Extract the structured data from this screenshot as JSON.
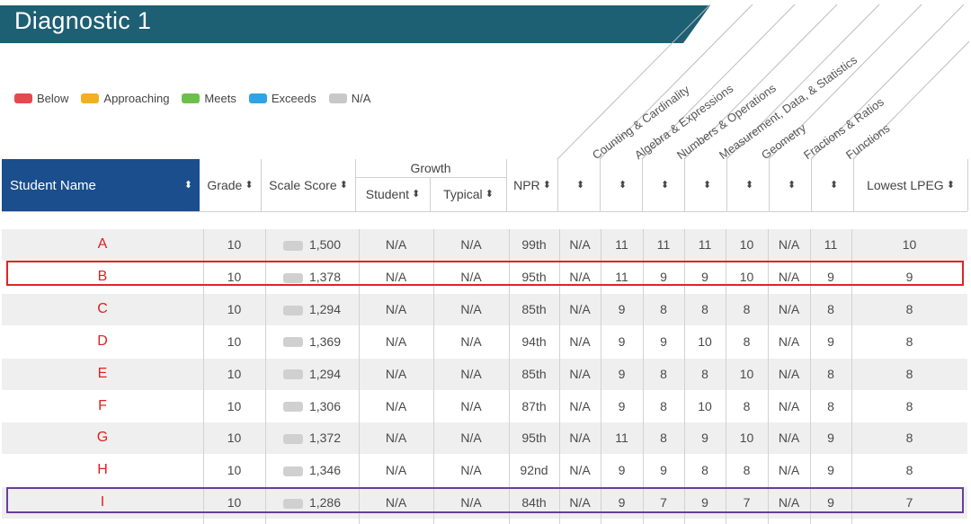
{
  "header": {
    "title": "Diagnostic 1"
  },
  "legend": [
    {
      "label": "Below",
      "color": "#e5484d"
    },
    {
      "label": "Approaching",
      "color": "#f2b01e"
    },
    {
      "label": "Meets",
      "color": "#6cc04a"
    },
    {
      "label": "Exceeds",
      "color": "#2ea3e6"
    },
    {
      "label": "N/A",
      "color": "#c8c8c8"
    }
  ],
  "domains": [
    "Counting & Cardinality",
    "Algebra & Expressions",
    "Numbers & Operations",
    "Measurement, Data, & Statistics",
    "Geometry",
    "Fractions & Ratios",
    "Functions"
  ],
  "columns": {
    "student_name": "Student Name",
    "grade": "Grade",
    "scale_score": "Scale Score",
    "growth": "Growth",
    "growth_student": "Student",
    "growth_typical": "Typical",
    "npr": "NPR",
    "lowest_lpeg": "Lowest LPEG",
    "sort_icon": "sort-arrows-icon"
  },
  "rows": [
    {
      "name": "A",
      "grade": "10",
      "score": "1,500",
      "student": "N/A",
      "typical": "N/A",
      "npr": "99th",
      "d1": "N/A",
      "d2": "11",
      "d3": "11",
      "d4": "11",
      "d5": "10",
      "d6": "N/A",
      "d7": "11",
      "lowest": "10"
    },
    {
      "name": "B",
      "grade": "10",
      "score": "1,378",
      "student": "N/A",
      "typical": "N/A",
      "npr": "95th",
      "d1": "N/A",
      "d2": "11",
      "d3": "9",
      "d4": "9",
      "d5": "10",
      "d6": "N/A",
      "d7": "9",
      "lowest": "9"
    },
    {
      "name": "C",
      "grade": "10",
      "score": "1,294",
      "student": "N/A",
      "typical": "N/A",
      "npr": "85th",
      "d1": "N/A",
      "d2": "9",
      "d3": "8",
      "d4": "8",
      "d5": "8",
      "d6": "N/A",
      "d7": "8",
      "lowest": "8"
    },
    {
      "name": "D",
      "grade": "10",
      "score": "1,369",
      "student": "N/A",
      "typical": "N/A",
      "npr": "94th",
      "d1": "N/A",
      "d2": "9",
      "d3": "9",
      "d4": "10",
      "d5": "8",
      "d6": "N/A",
      "d7": "9",
      "lowest": "8"
    },
    {
      "name": "E",
      "grade": "10",
      "score": "1,294",
      "student": "N/A",
      "typical": "N/A",
      "npr": "85th",
      "d1": "N/A",
      "d2": "9",
      "d3": "8",
      "d4": "8",
      "d5": "10",
      "d6": "N/A",
      "d7": "8",
      "lowest": "8"
    },
    {
      "name": "F",
      "grade": "10",
      "score": "1,306",
      "student": "N/A",
      "typical": "N/A",
      "npr": "87th",
      "d1": "N/A",
      "d2": "9",
      "d3": "8",
      "d4": "10",
      "d5": "8",
      "d6": "N/A",
      "d7": "8",
      "lowest": "8"
    },
    {
      "name": "G",
      "grade": "10",
      "score": "1,372",
      "student": "N/A",
      "typical": "N/A",
      "npr": "95th",
      "d1": "N/A",
      "d2": "11",
      "d3": "8",
      "d4": "9",
      "d5": "10",
      "d6": "N/A",
      "d7": "9",
      "lowest": "8"
    },
    {
      "name": "H",
      "grade": "10",
      "score": "1,346",
      "student": "N/A",
      "typical": "N/A",
      "npr": "92nd",
      "d1": "N/A",
      "d2": "9",
      "d3": "9",
      "d4": "8",
      "d5": "8",
      "d6": "N/A",
      "d7": "9",
      "lowest": "8"
    },
    {
      "name": "I",
      "grade": "10",
      "score": "1,286",
      "student": "N/A",
      "typical": "N/A",
      "npr": "84th",
      "d1": "N/A",
      "d2": "9",
      "d3": "7",
      "d4": "9",
      "d5": "7",
      "d6": "N/A",
      "d7": "9",
      "lowest": "7"
    }
  ]
}
